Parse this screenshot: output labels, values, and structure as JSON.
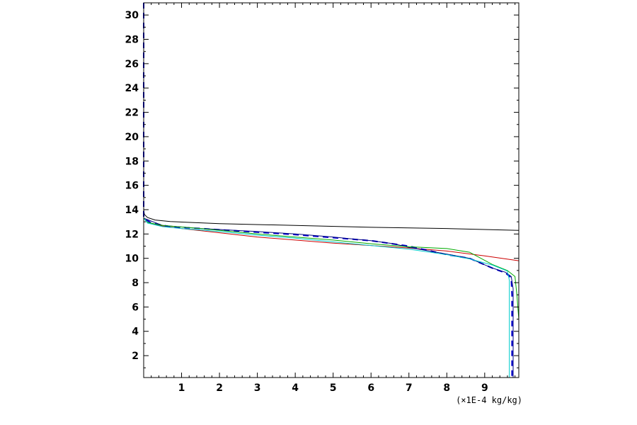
{
  "chart_data": {
    "type": "line",
    "title": "",
    "xlabel": "(×1E-4 kg/kg)",
    "ylabel": "",
    "xlim": [
      0,
      9.9
    ],
    "ylim": [
      0.2,
      31.0
    ],
    "grid": false,
    "x_ticks": [
      1,
      2,
      3,
      4,
      5,
      6,
      7,
      8,
      9
    ],
    "y_ticks": [
      2,
      4,
      6,
      8,
      10,
      12,
      14,
      16,
      18,
      20,
      22,
      24,
      26,
      28,
      30
    ],
    "series": [
      {
        "color": "#000000",
        "dash": "",
        "points": [
          [
            0,
            31
          ],
          [
            0,
            14.0
          ],
          [
            0.02,
            13.6
          ],
          [
            0.1,
            13.35
          ],
          [
            0.3,
            13.15
          ],
          [
            0.7,
            13.02
          ],
          [
            2,
            12.85
          ],
          [
            4,
            12.7
          ],
          [
            6,
            12.55
          ],
          [
            8,
            12.45
          ],
          [
            9.9,
            12.3
          ]
        ]
      },
      {
        "color": "#cc0000",
        "dash": "",
        "points": [
          [
            0,
            31
          ],
          [
            0,
            13.3
          ],
          [
            0.1,
            12.95
          ],
          [
            0.5,
            12.65
          ],
          [
            1,
            12.45
          ],
          [
            2,
            12.1
          ],
          [
            3,
            11.75
          ],
          [
            4,
            11.5
          ],
          [
            5,
            11.25
          ],
          [
            6,
            11.05
          ],
          [
            7,
            10.85
          ],
          [
            8,
            10.6
          ],
          [
            9,
            10.2
          ],
          [
            9.9,
            9.8
          ]
        ]
      },
      {
        "color": "#0000cc",
        "dash": "8,6",
        "points": [
          [
            0,
            31
          ],
          [
            0,
            13.3
          ],
          [
            0.2,
            12.9
          ],
          [
            0.7,
            12.6
          ],
          [
            1.5,
            12.45
          ],
          [
            3,
            12.15
          ],
          [
            4,
            11.95
          ],
          [
            5,
            11.7
          ],
          [
            6,
            11.45
          ],
          [
            7,
            11.0
          ],
          [
            8,
            10.3
          ],
          [
            8.6,
            10.0
          ],
          [
            9.2,
            9.2
          ],
          [
            9.55,
            8.8
          ],
          [
            9.7,
            8.4
          ],
          [
            9.72,
            7.0
          ],
          [
            9.72,
            0.2
          ]
        ]
      },
      {
        "color": "#000080",
        "dash": "",
        "points": [
          [
            0,
            13.3
          ],
          [
            0.5,
            12.7
          ],
          [
            1.5,
            12.45
          ],
          [
            3,
            12.2
          ],
          [
            4,
            12.0
          ],
          [
            5,
            11.75
          ],
          [
            6,
            11.45
          ],
          [
            6.6,
            11.2
          ],
          [
            7,
            10.9
          ],
          [
            8,
            10.35
          ],
          [
            8.6,
            10.0
          ],
          [
            9.2,
            9.2
          ],
          [
            9.55,
            8.85
          ],
          [
            9.7,
            8.5
          ],
          [
            9.75,
            7.5
          ],
          [
            9.75,
            0.2
          ]
        ]
      },
      {
        "color": "#00aa00",
        "dash": "",
        "points": [
          [
            0,
            31
          ],
          [
            0,
            13.3
          ],
          [
            0.1,
            12.95
          ],
          [
            0.5,
            12.7
          ],
          [
            1.5,
            12.45
          ],
          [
            3,
            12.0
          ],
          [
            4,
            11.75
          ],
          [
            5,
            11.5
          ],
          [
            6,
            11.2
          ],
          [
            7,
            10.95
          ],
          [
            8,
            10.8
          ],
          [
            8.6,
            10.5
          ],
          [
            9.2,
            9.5
          ],
          [
            9.6,
            9.0
          ],
          [
            9.8,
            8.5
          ],
          [
            9.85,
            7.0
          ],
          [
            9.9,
            5.0
          ],
          [
            9.9,
            0.2
          ]
        ]
      },
      {
        "color": "#00cccc",
        "dash": "",
        "points": [
          [
            0,
            31
          ],
          [
            0,
            13.3
          ],
          [
            0.1,
            12.9
          ],
          [
            0.5,
            12.6
          ],
          [
            1,
            12.45
          ],
          [
            2,
            12.2
          ],
          [
            3,
            11.9
          ],
          [
            4,
            11.65
          ],
          [
            5,
            11.35
          ],
          [
            6,
            11.05
          ],
          [
            7,
            10.75
          ],
          [
            8,
            10.3
          ],
          [
            8.6,
            9.95
          ],
          [
            9.2,
            9.45
          ],
          [
            9.6,
            8.95
          ],
          [
            9.65,
            8.2
          ],
          [
            9.65,
            0.2
          ]
        ]
      }
    ]
  }
}
